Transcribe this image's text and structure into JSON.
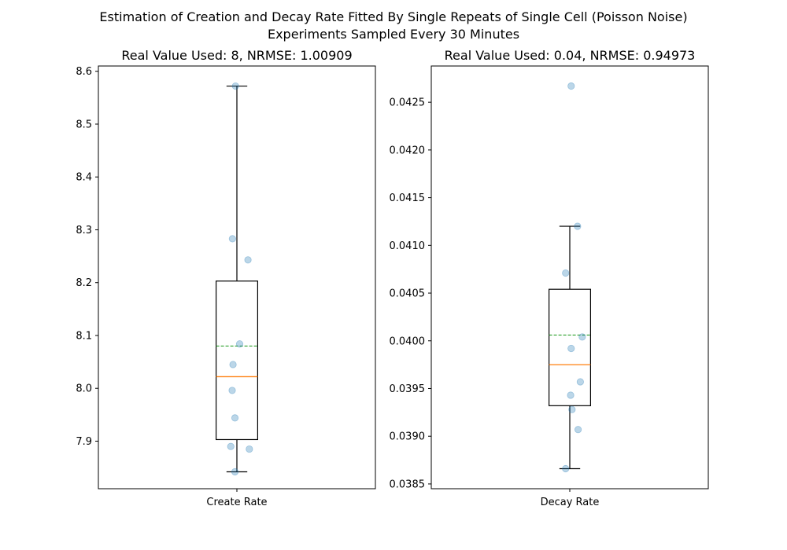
{
  "figure": {
    "title_line1": "Estimation of Creation and Decay Rate Fitted By Single Repeats of Single Cell (Poisson Noise)",
    "title_line2": "Experiments Sampled Every 30 Minutes"
  },
  "colors": {
    "box": "#000000",
    "median": "#ff7f0e",
    "mean": "#2ca02c",
    "points": "#1f77b4"
  },
  "chart_data": [
    {
      "type": "box",
      "title": "Real Value Used: 8, NRMSE: 1.00909",
      "category": "Create Rate",
      "ylim": [
        7.81,
        8.61
      ],
      "yticks": [
        7.9,
        8.0,
        8.1,
        8.2,
        8.3,
        8.4,
        8.5,
        8.6
      ],
      "ytick_labels": [
        "7.9",
        "8.0",
        "8.1",
        "8.2",
        "8.3",
        "8.4",
        "8.5",
        "8.6"
      ],
      "whisker_low": 7.842,
      "q1": 7.903,
      "median": 8.022,
      "mean": 8.08,
      "q3": 8.203,
      "whisker_high": 8.572,
      "points": [
        {
          "x": 0.995,
          "y": 8.572
        },
        {
          "x": 0.984,
          "y": 8.283
        },
        {
          "x": 1.04,
          "y": 8.243
        },
        {
          "x": 1.01,
          "y": 8.084
        },
        {
          "x": 0.986,
          "y": 8.045
        },
        {
          "x": 0.983,
          "y": 7.996
        },
        {
          "x": 0.993,
          "y": 7.944
        },
        {
          "x": 0.978,
          "y": 7.89
        },
        {
          "x": 1.045,
          "y": 7.885
        },
        {
          "x": 0.993,
          "y": 7.842
        }
      ]
    },
    {
      "type": "box",
      "title": "Real Value Used: 0.04, NRMSE: 0.94973",
      "category": "Decay Rate",
      "ylim": [
        0.03845,
        0.04288
      ],
      "yticks": [
        0.0385,
        0.039,
        0.0395,
        0.04,
        0.0405,
        0.041,
        0.0415,
        0.042,
        0.0425
      ],
      "ytick_labels": [
        "0.0385",
        "0.0390",
        "0.0395",
        "0.0400",
        "0.0405",
        "0.0410",
        "0.0415",
        "0.0420",
        "0.0425"
      ],
      "whisker_low": 0.03866,
      "q1": 0.03932,
      "median": 0.03975,
      "mean": 0.04006,
      "q3": 0.04054,
      "whisker_high": 0.0412,
      "outliers": [
        0.04267
      ],
      "points": [
        {
          "x": 1.005,
          "y": 0.04267
        },
        {
          "x": 1.028,
          "y": 0.0412
        },
        {
          "x": 0.985,
          "y": 0.04071
        },
        {
          "x": 1.045,
          "y": 0.04004
        },
        {
          "x": 1.005,
          "y": 0.03992
        },
        {
          "x": 1.038,
          "y": 0.03957
        },
        {
          "x": 1.003,
          "y": 0.03943
        },
        {
          "x": 1.008,
          "y": 0.03928
        },
        {
          "x": 1.03,
          "y": 0.03907
        },
        {
          "x": 0.985,
          "y": 0.03866
        }
      ]
    }
  ]
}
